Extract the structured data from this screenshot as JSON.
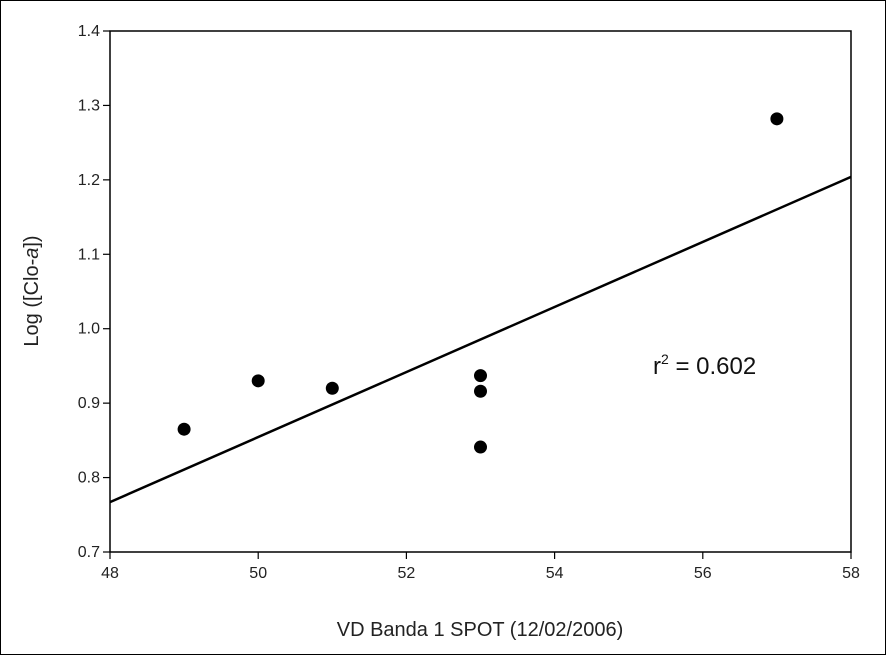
{
  "chart_data": {
    "type": "scatter",
    "xlabel": "VD Banda 1 SPOT (12/02/2006)",
    "ylabel_prefix": "Log ([Clo-",
    "ylabel_italic": "a",
    "ylabel_suffix": "])",
    "xlim": [
      48,
      58
    ],
    "ylim": [
      0.7,
      1.4
    ],
    "xticks": [
      "48",
      "50",
      "52",
      "54",
      "56",
      "58"
    ],
    "yticks": [
      "0.7",
      "0.8",
      "0.9",
      "1.0",
      "1.1",
      "1.2",
      "1.3",
      "1.4"
    ],
    "points": [
      {
        "x": 49,
        "y": 0.865
      },
      {
        "x": 50,
        "y": 0.93
      },
      {
        "x": 51,
        "y": 0.92
      },
      {
        "x": 53,
        "y": 0.937
      },
      {
        "x": 53,
        "y": 0.916
      },
      {
        "x": 53,
        "y": 0.841
      },
      {
        "x": 57,
        "y": 1.282
      }
    ],
    "regression_line": {
      "x": [
        48,
        58
      ],
      "y": [
        0.767,
        1.204
      ]
    },
    "annotation": {
      "base": "r",
      "superscript": "2",
      "text": " = 0.602"
    },
    "grid": false,
    "legend": "none"
  }
}
